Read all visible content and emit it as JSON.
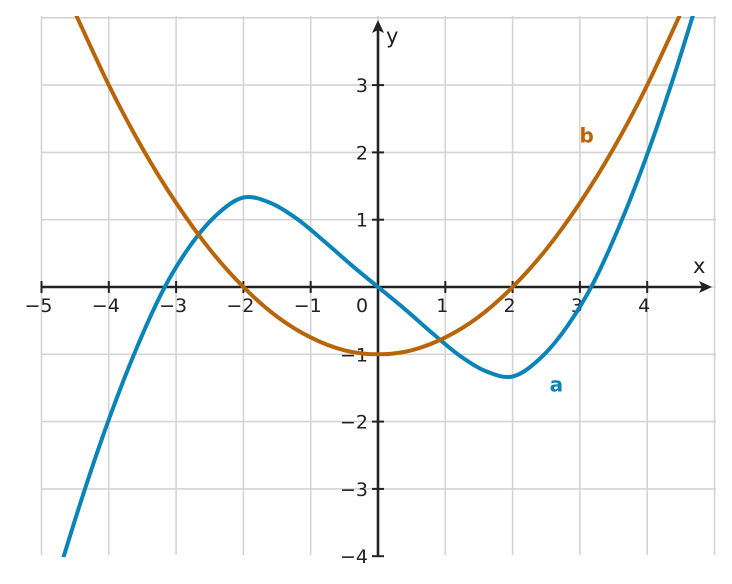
{
  "chart_data": {
    "type": "line",
    "title": "",
    "xlabel": "x",
    "ylabel": "y",
    "xlim": [
      -5,
      5
    ],
    "ylim": [
      -4,
      4
    ],
    "grid": true,
    "x_ticks": [
      -5,
      -4,
      -3,
      -2,
      -1,
      0,
      1,
      2,
      3,
      4
    ],
    "y_ticks": [
      -4,
      -3,
      -2,
      -1,
      1,
      2,
      3
    ],
    "x_tick_labels": [
      "−5",
      "−4",
      "−3",
      "−2",
      "−1",
      "0",
      "1",
      "2",
      "3",
      "4"
    ],
    "y_tick_labels": [
      "−4",
      "−3",
      "−2",
      "−1",
      "1",
      "2",
      "3"
    ],
    "series": [
      {
        "name": "a",
        "color": "#0a84b8",
        "x": [
          -4.8,
          -4.4,
          -4.0,
          -3.6,
          -3.2,
          -2.8,
          -2.4,
          -2.0,
          -1.6,
          -1.2,
          -0.8,
          -0.4,
          0.0,
          0.4,
          0.8,
          1.2,
          1.6,
          2.0,
          2.4,
          2.8,
          3.2,
          3.6,
          4.0,
          4.4,
          4.8
        ],
        "y": [
          -4.43,
          -3.14,
          -1.97,
          -0.94,
          -0.06,
          0.6,
          1.07,
          1.33,
          1.25,
          1.01,
          0.68,
          0.33,
          0.0,
          -0.33,
          -0.68,
          -1.01,
          -1.25,
          -1.33,
          -1.07,
          -0.6,
          0.06,
          0.94,
          1.97,
          3.14,
          4.43
        ]
      },
      {
        "name": "b",
        "color": "#b8650a",
        "x": [
          -4.6,
          -4.0,
          -3.5,
          -3.0,
          -2.5,
          -2.0,
          -1.5,
          -1.0,
          -0.5,
          0.0,
          0.5,
          1.0,
          1.5,
          2.0,
          2.5,
          3.0,
          3.5,
          4.0,
          4.6
        ],
        "y": [
          4.29,
          3.0,
          2.06,
          1.25,
          0.56,
          0.0,
          -0.44,
          -0.75,
          -0.94,
          -1.0,
          -0.94,
          -0.75,
          -0.44,
          0.0,
          0.56,
          1.25,
          2.06,
          3.0,
          4.29
        ]
      }
    ],
    "curve_labels": [
      {
        "text": "a",
        "x": 2.65,
        "y": -1.55,
        "color": "#0a84b8"
      },
      {
        "text": "b",
        "x": 3.1,
        "y": 2.15,
        "color": "#b8650a"
      }
    ]
  }
}
